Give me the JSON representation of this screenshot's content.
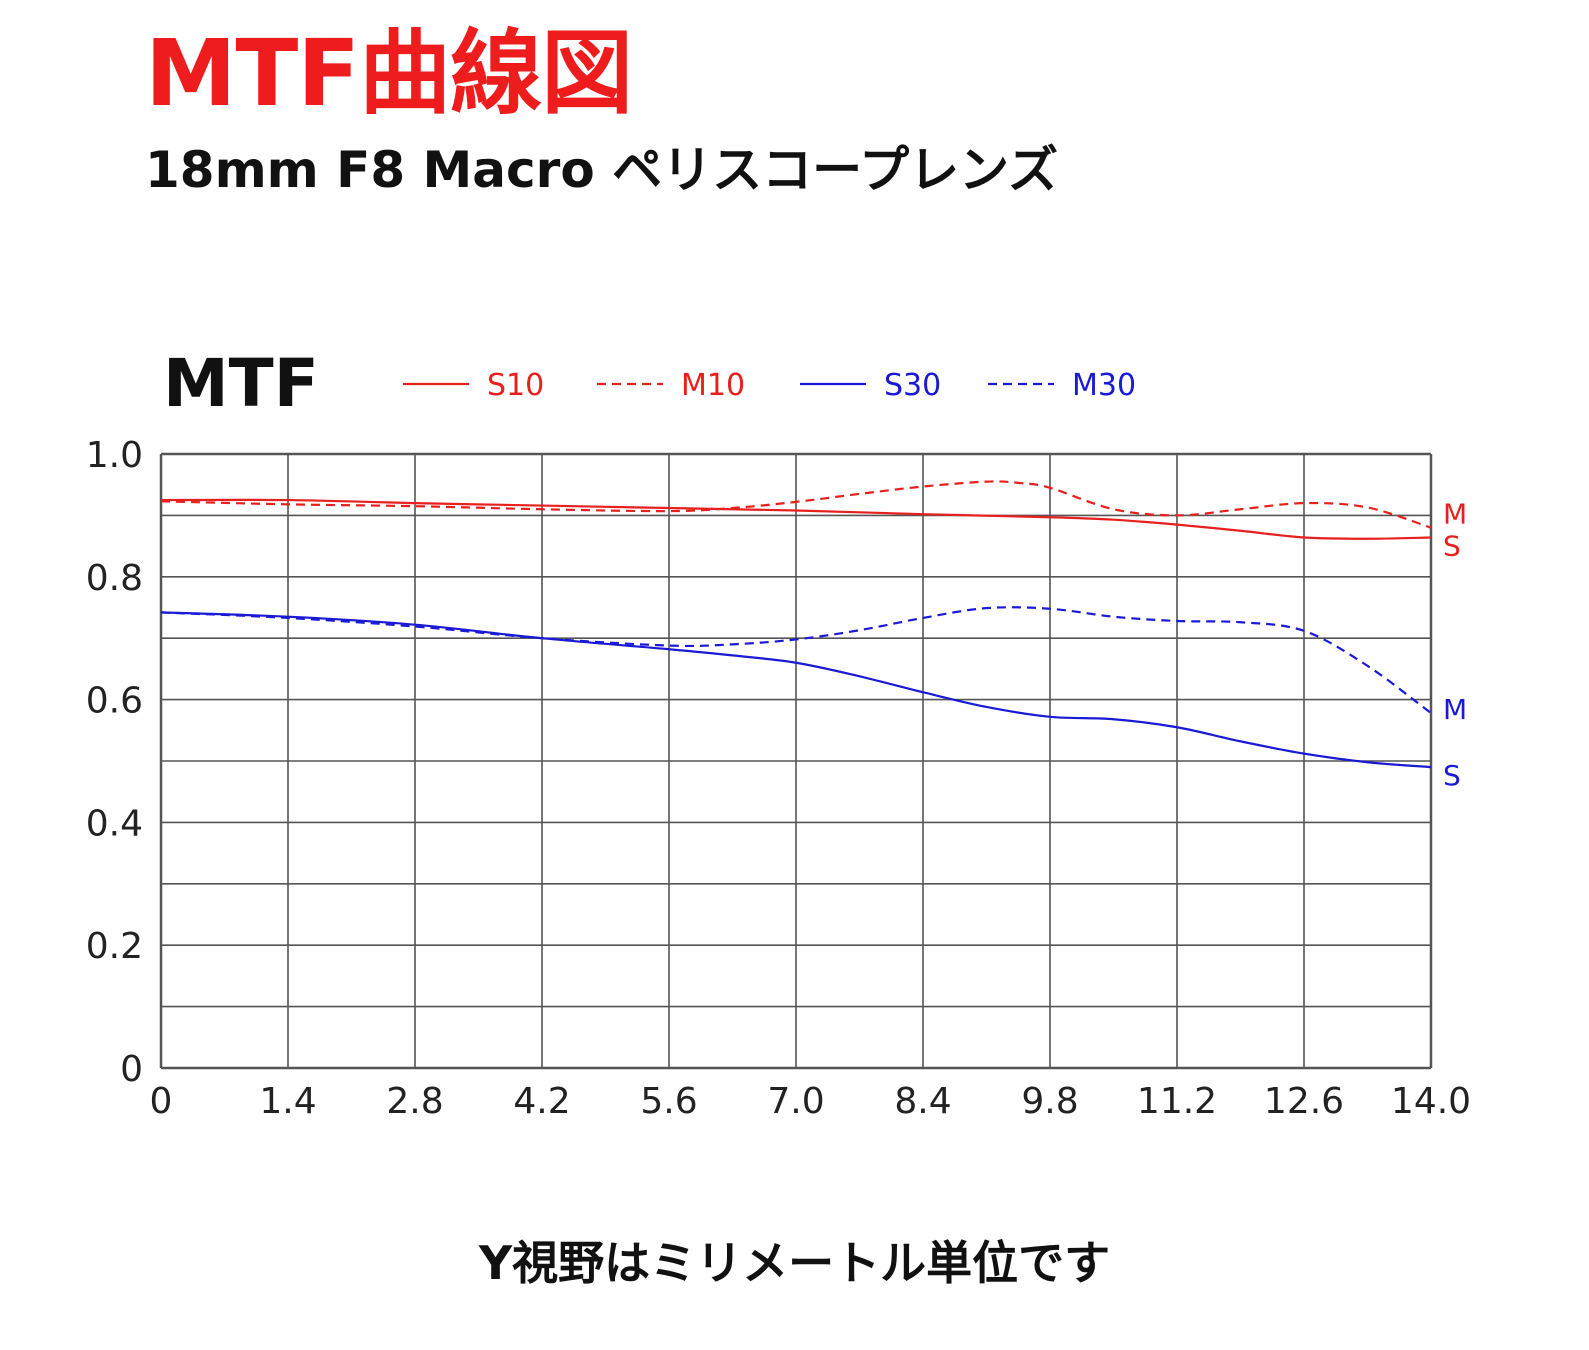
{
  "header": {
    "title": "MTF曲線図",
    "subtitle": "18mm F8 Macro ペリスコープレンズ"
  },
  "footer": {
    "note": "Y視野はミリメートル単位です"
  },
  "colors": {
    "red": "#e8201d",
    "blue": "#1a1ad6",
    "grid": "#555555"
  },
  "chart_data": {
    "type": "line",
    "ylabel": "MTF",
    "xlabel": "",
    "xlim": [
      0,
      14.0
    ],
    "ylim": [
      0,
      1.0
    ],
    "x_ticks": [
      "0",
      "1.4",
      "2.8",
      "4.2",
      "5.6",
      "7.0",
      "8.4",
      "9.8",
      "11.2",
      "12.6",
      "14.0"
    ],
    "y_ticks": [
      "0",
      "0.2",
      "0.4",
      "0.6",
      "0.8",
      "1.0"
    ],
    "grid": true,
    "legend_position": "top",
    "series": [
      {
        "name": "S10",
        "color": "#e8201d",
        "dash": false,
        "end_label": "S",
        "x": [
          0,
          1.4,
          2.8,
          4.2,
          5.6,
          7.0,
          8.4,
          9.8,
          10.5,
          11.2,
          11.9,
          12.6,
          13.3,
          14.0
        ],
        "y": [
          0.925,
          0.925,
          0.92,
          0.916,
          0.912,
          0.908,
          0.902,
          0.897,
          0.893,
          0.885,
          0.875,
          0.864,
          0.862,
          0.864
        ]
      },
      {
        "name": "M10",
        "color": "#e8201d",
        "dash": true,
        "end_label": "M",
        "x": [
          0,
          1.4,
          2.8,
          4.2,
          5.6,
          6.3,
          7.0,
          7.7,
          8.4,
          9.1,
          9.45,
          9.8,
          10.5,
          11.2,
          11.9,
          12.6,
          13.3,
          14.0
        ],
        "y": [
          0.923,
          0.918,
          0.915,
          0.91,
          0.907,
          0.912,
          0.922,
          0.935,
          0.947,
          0.955,
          0.953,
          0.945,
          0.91,
          0.9,
          0.91,
          0.92,
          0.913,
          0.88
        ]
      },
      {
        "name": "S30",
        "color": "#1a1ad6",
        "dash": false,
        "end_label": "S",
        "x": [
          0,
          1.4,
          2.8,
          4.2,
          5.6,
          6.3,
          7.0,
          7.7,
          8.4,
          9.1,
          9.8,
          10.5,
          11.2,
          11.9,
          12.6,
          13.3,
          14.0
        ],
        "y": [
          0.742,
          0.735,
          0.722,
          0.7,
          0.682,
          0.672,
          0.66,
          0.638,
          0.612,
          0.588,
          0.572,
          0.568,
          0.555,
          0.532,
          0.512,
          0.498,
          0.49
        ]
      },
      {
        "name": "M30",
        "color": "#1a1ad6",
        "dash": true,
        "end_label": "M",
        "x": [
          0,
          1.4,
          2.8,
          4.2,
          5.6,
          6.3,
          7.0,
          7.7,
          8.4,
          9.1,
          9.8,
          10.5,
          11.2,
          11.9,
          12.6,
          13.3,
          14.0
        ],
        "y": [
          0.742,
          0.733,
          0.719,
          0.7,
          0.688,
          0.69,
          0.698,
          0.713,
          0.733,
          0.749,
          0.748,
          0.735,
          0.728,
          0.726,
          0.712,
          0.655,
          0.578
        ]
      }
    ]
  }
}
